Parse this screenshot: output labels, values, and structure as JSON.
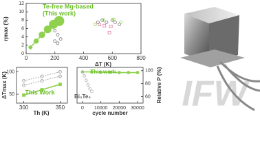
{
  "chart_data": [
    {
      "type": "scatter",
      "x_label": "ΔT (K)",
      "y_label": "ηmax (%)",
      "annotations": [
        "Te-free Mg-based",
        "(This work)"
      ],
      "xlim": [
        0,
        800
      ],
      "xticks": [
        0,
        200,
        400,
        600,
        800
      ],
      "ylim": [
        0,
        12
      ],
      "yticks": [
        0,
        2,
        4,
        6,
        8,
        10,
        12
      ],
      "series": [
        {
          "color": "#8fd14f",
          "marker": "filled",
          "line": true,
          "x": [
            30,
            70,
            110,
            150,
            190,
            230
          ],
          "values": [
            1.5,
            3,
            4.5,
            5.8,
            7,
            7.8
          ]
        },
        {
          "color": "#777777",
          "marker": "open",
          "x": [
            200,
            220,
            200,
            220,
            240,
            500,
            530,
            560,
            600,
            620,
            650
          ],
          "values": [
            5.5,
            4.5,
            3,
            2.5,
            3.5,
            7.5,
            8,
            7.5,
            8,
            7.5,
            7
          ]
        },
        {
          "color": "#8fd14f",
          "marker": "open",
          "x": [
            480,
            540,
            610,
            660
          ],
          "values": [
            7,
            8,
            8.2,
            7.5
          ]
        },
        {
          "color": "#e07aa0",
          "marker": "square",
          "x": [
            510,
            545,
            590,
            580
          ],
          "values": [
            7,
            6.7,
            6.5,
            5
          ]
        }
      ]
    },
    {
      "type": "line",
      "x_label": "Th (K)",
      "y_label": "ΔTmax (K)",
      "annotations": [
        "This Work"
      ],
      "xlim": [
        290,
        360
      ],
      "xticks": [
        300,
        350
      ],
      "ylim": [
        30,
        110
      ],
      "yticks": [
        50,
        100
      ],
      "series": [
        {
          "color": "#999999",
          "marker": "open",
          "dashed": true,
          "line": true,
          "x": [
            300,
            325,
            350
          ],
          "values": [
            80,
            90,
            100
          ]
        },
        {
          "color": "#999999",
          "marker": "open",
          "dashed": true,
          "line": true,
          "x": [
            300,
            325,
            350
          ],
          "values": [
            70,
            80,
            90
          ]
        },
        {
          "color": "#8fd14f",
          "marker": "square",
          "line": true,
          "x": [
            300,
            325,
            350
          ],
          "values": [
            48,
            60,
            72
          ]
        }
      ]
    },
    {
      "type": "line",
      "x_label": "cycle number",
      "y_label": "Relative P (%)",
      "y_axis_side": "right",
      "annotations": [
        "This work",
        "Bi₂Te₃"
      ],
      "xlim": [
        -3000,
        33000
      ],
      "xticks": [
        0,
        10000,
        20000,
        30000
      ],
      "ylim": [
        50,
        105
      ],
      "yticks": [
        60,
        80,
        100
      ],
      "series": [
        {
          "color": "#8fd14f",
          "marker": "filled",
          "line": true,
          "x": [
            0,
            5000,
            10000,
            15000,
            20000,
            25000,
            30000
          ],
          "values": [
            98,
            98,
            97.5,
            97.5,
            97,
            97,
            97
          ]
        },
        {
          "color": "#bbbbbb",
          "marker": "open",
          "dashed": true,
          "line": true,
          "x": [
            0,
            1000,
            2000,
            3000,
            4000,
            5000
          ],
          "values": [
            98,
            92,
            85,
            78,
            72,
            68
          ]
        }
      ]
    }
  ],
  "image": {
    "logo": "IFW"
  }
}
